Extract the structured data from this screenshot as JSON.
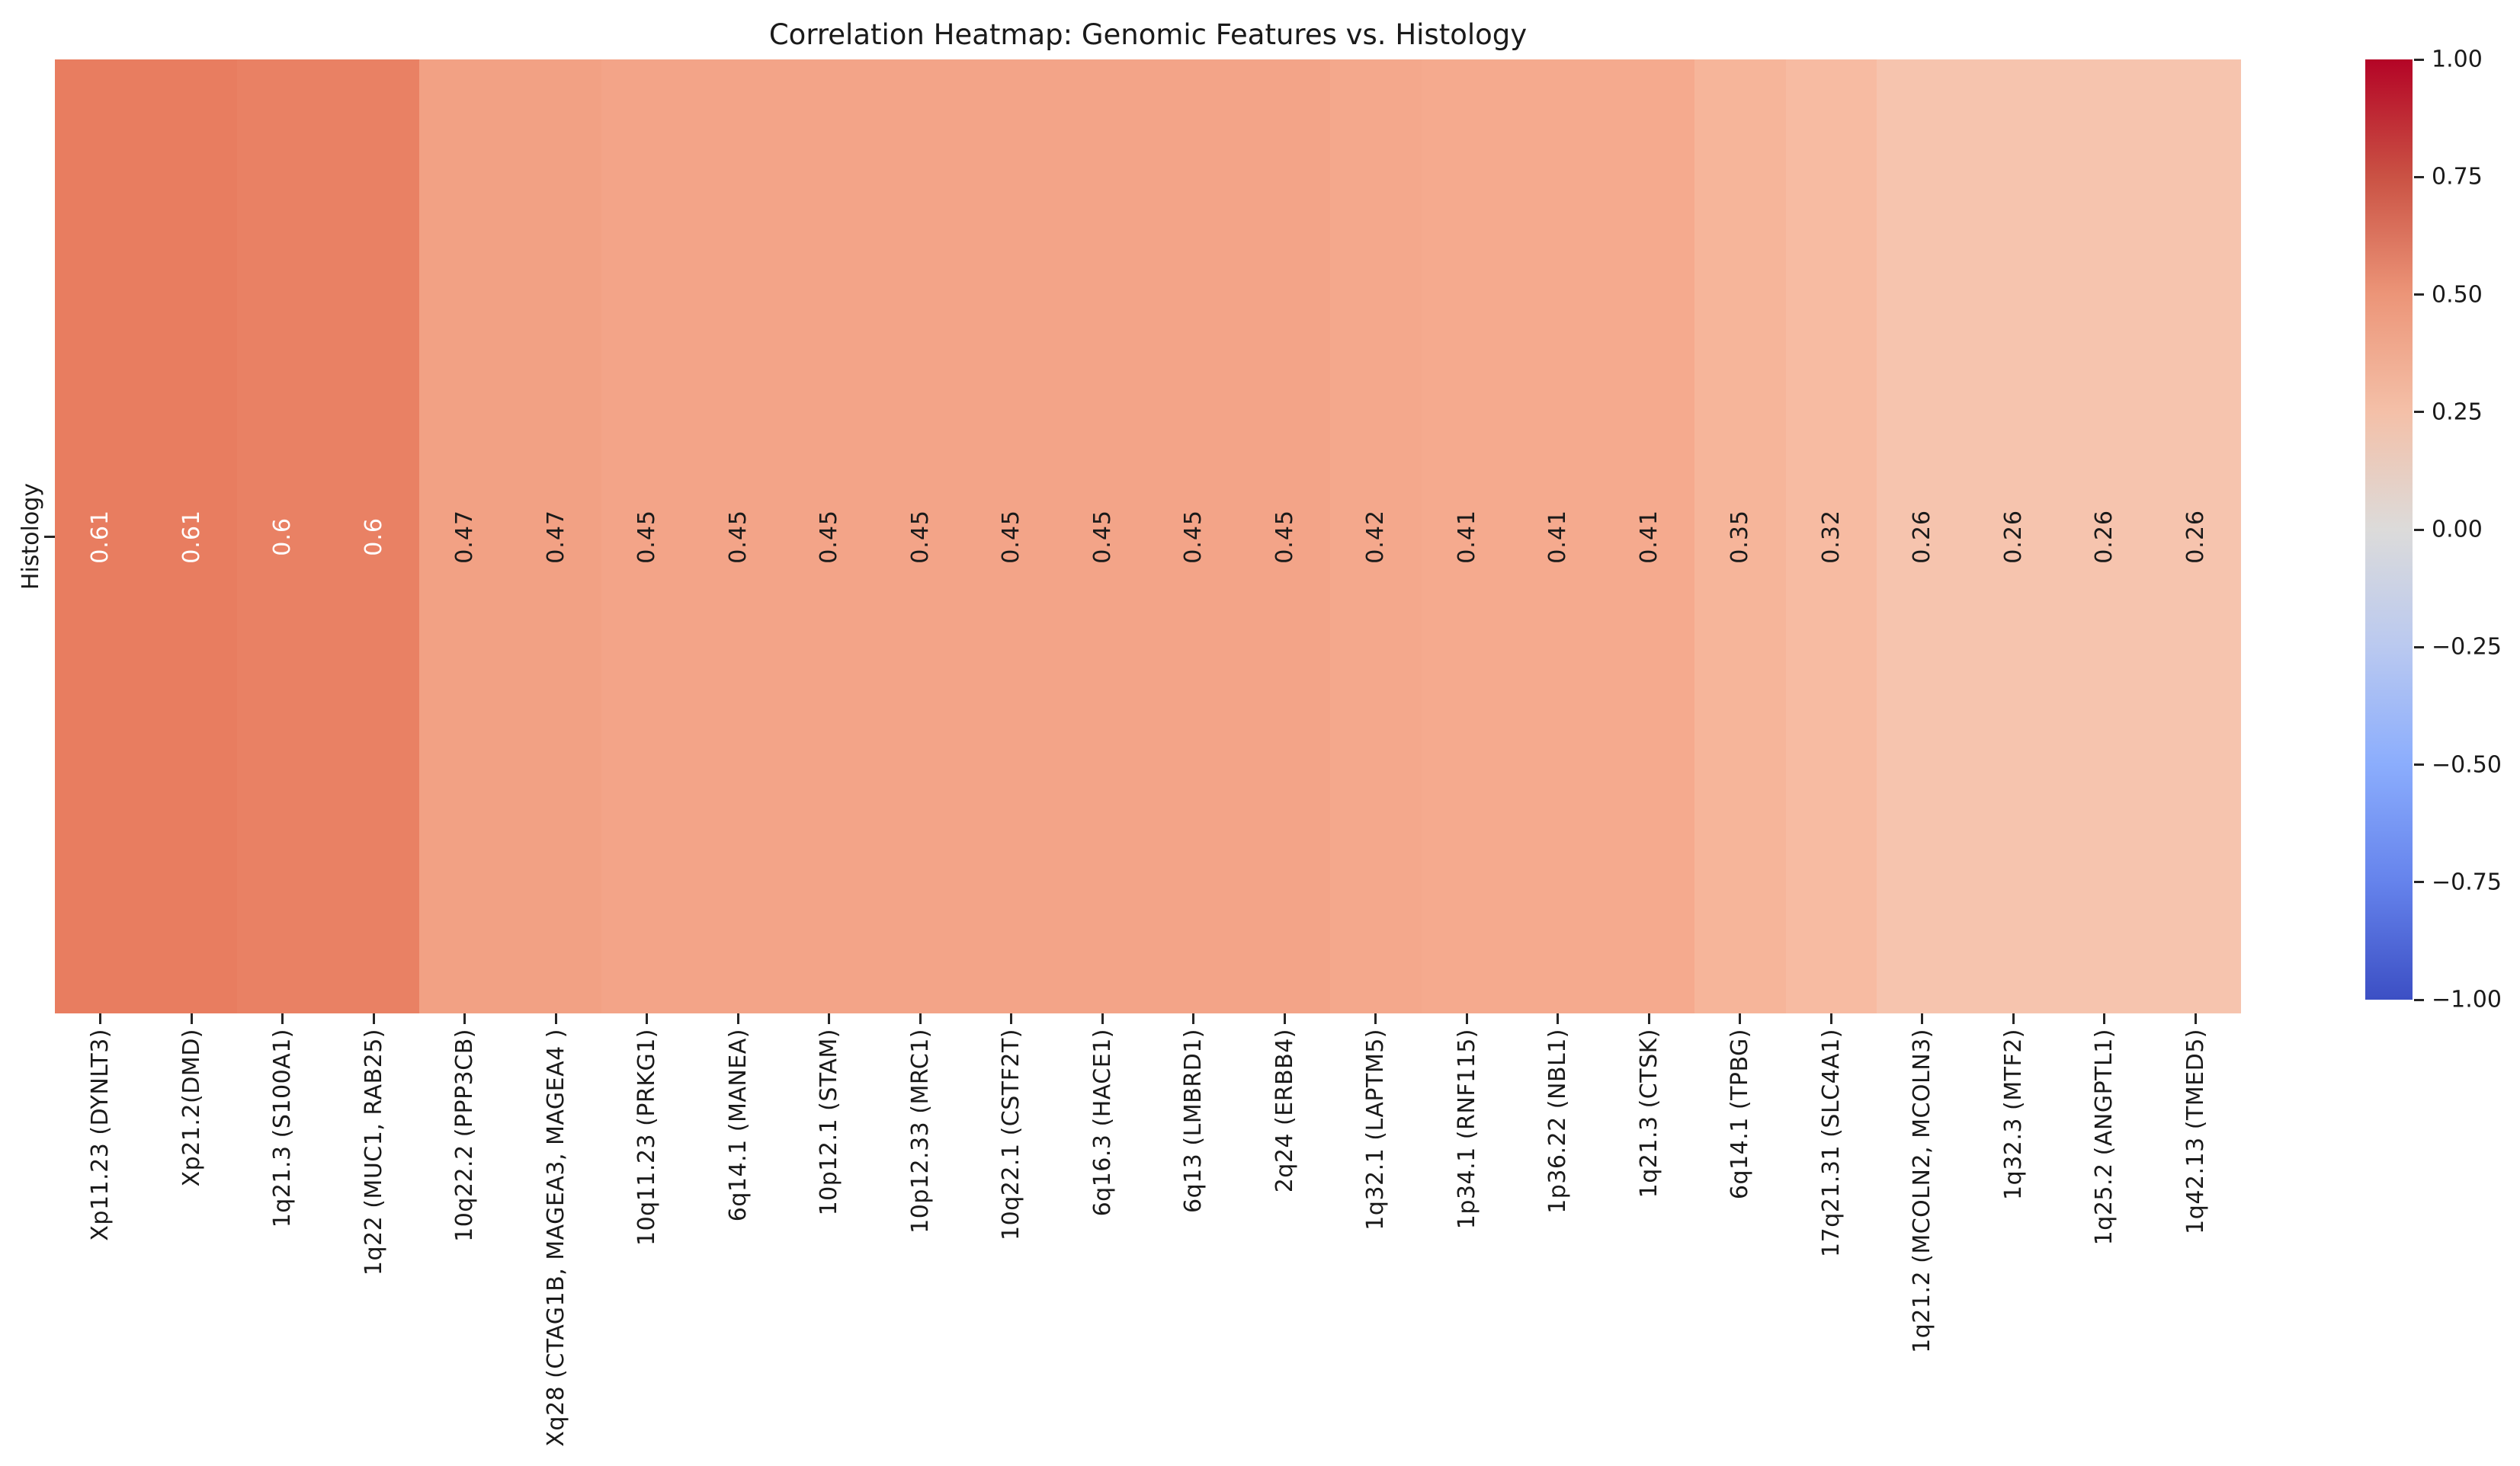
{
  "title": "Correlation Heatmap: Genomic Features vs. Histology",
  "y_axis": {
    "label": "Histology"
  },
  "chart_data": {
    "type": "heatmap",
    "title": "Correlation Heatmap: Genomic Features vs. Histology",
    "ylabel": "Histology",
    "rows": [
      "Histology"
    ],
    "colormap": "coolwarm",
    "vmin": -1,
    "vmax": 1,
    "grid": false,
    "columns": [
      "Xp11.23 (DYNLT3)",
      "Xp21.2(DMD)",
      "1q21.3 (S100A1)",
      "1q22 (MUC1, RAB25)",
      "10q22.2 (PPP3CB)",
      "Xq28 (CTAG1B, MAGEA3, MAGEA4 )",
      "10q11.23 (PRKG1)",
      "6q14.1 (MANEA)",
      "10p12.1 (STAM)",
      "10p12.33 (MRC1)",
      "10q22.1 (CSTF2T)",
      "6q16.3 (HACE1)",
      "6q13 (LMBRD1)",
      "2q24 (ERBB4)",
      "1q32.1 (LAPTM5)",
      "1p34.1 (RNF115)",
      "1p36.22 (NBL1)",
      "1q21.3 (CTSK)",
      "6q14.1 (TPBG)",
      "17q21.31 (SLC4A1)",
      "1q21.2 (MCOLN2, MCOLN3)",
      "1q32.3 (MTF2)",
      "1q25.2 (ANGPTL1)",
      "1q42.13 (TMED5)"
    ],
    "values": [
      0.61,
      0.61,
      0.6,
      0.6,
      0.47,
      0.47,
      0.45,
      0.45,
      0.45,
      0.45,
      0.45,
      0.45,
      0.45,
      0.45,
      0.42,
      0.41,
      0.41,
      0.41,
      0.35,
      0.32,
      0.26,
      0.26,
      0.26,
      0.26
    ],
    "value_labels": [
      "0.61",
      "0.61",
      "0.6",
      "0.6",
      "0.47",
      "0.47",
      "0.45",
      "0.45",
      "0.45",
      "0.45",
      "0.45",
      "0.45",
      "0.45",
      "0.45",
      "0.42",
      "0.41",
      "0.41",
      "0.41",
      "0.35",
      "0.32",
      "0.26",
      "0.26",
      "0.26",
      "0.26"
    ],
    "cell_colors": [
      "#e87d60",
      "#e87d60",
      "#e98164",
      "#e98164",
      "#f2a184",
      "#f2a184",
      "#f3a488",
      "#f3a488",
      "#f3a488",
      "#f3a488",
      "#f3a488",
      "#f3a488",
      "#f3a488",
      "#f3a488",
      "#f4a88c",
      "#f5aa8e",
      "#f5aa8e",
      "#f5aa8e",
      "#f6b59a",
      "#f7bba2",
      "#f6c4ae",
      "#f6c4ae",
      "#f6c4ae",
      "#f6c4ae"
    ],
    "cell_text_colors": [
      "#ffffff",
      "#ffffff",
      "#ffffff",
      "#ffffff",
      "#1a1a1a",
      "#1a1a1a",
      "#1a1a1a",
      "#1a1a1a",
      "#1a1a1a",
      "#1a1a1a",
      "#1a1a1a",
      "#1a1a1a",
      "#1a1a1a",
      "#1a1a1a",
      "#1a1a1a",
      "#1a1a1a",
      "#1a1a1a",
      "#1a1a1a",
      "#1a1a1a",
      "#1a1a1a",
      "#1a1a1a",
      "#1a1a1a",
      "#1a1a1a",
      "#1a1a1a"
    ],
    "colorbar": {
      "tick_labels": [
        "1.00",
        "0.75",
        "0.50",
        "0.25",
        "0.00",
        "−0.25",
        "−0.50",
        "−0.75",
        "−1.00"
      ],
      "tick_values": [
        1.0,
        0.75,
        0.5,
        0.25,
        0.0,
        -0.25,
        -0.5,
        -0.75,
        -1.0
      ],
      "gradient_stops": [
        "#b40426",
        "#ca5244",
        "#ec9578",
        "#f4c0a8",
        "#dcdbda",
        "#bac9f0",
        "#8badfd",
        "#6583ec",
        "#3c4fc4"
      ]
    }
  }
}
